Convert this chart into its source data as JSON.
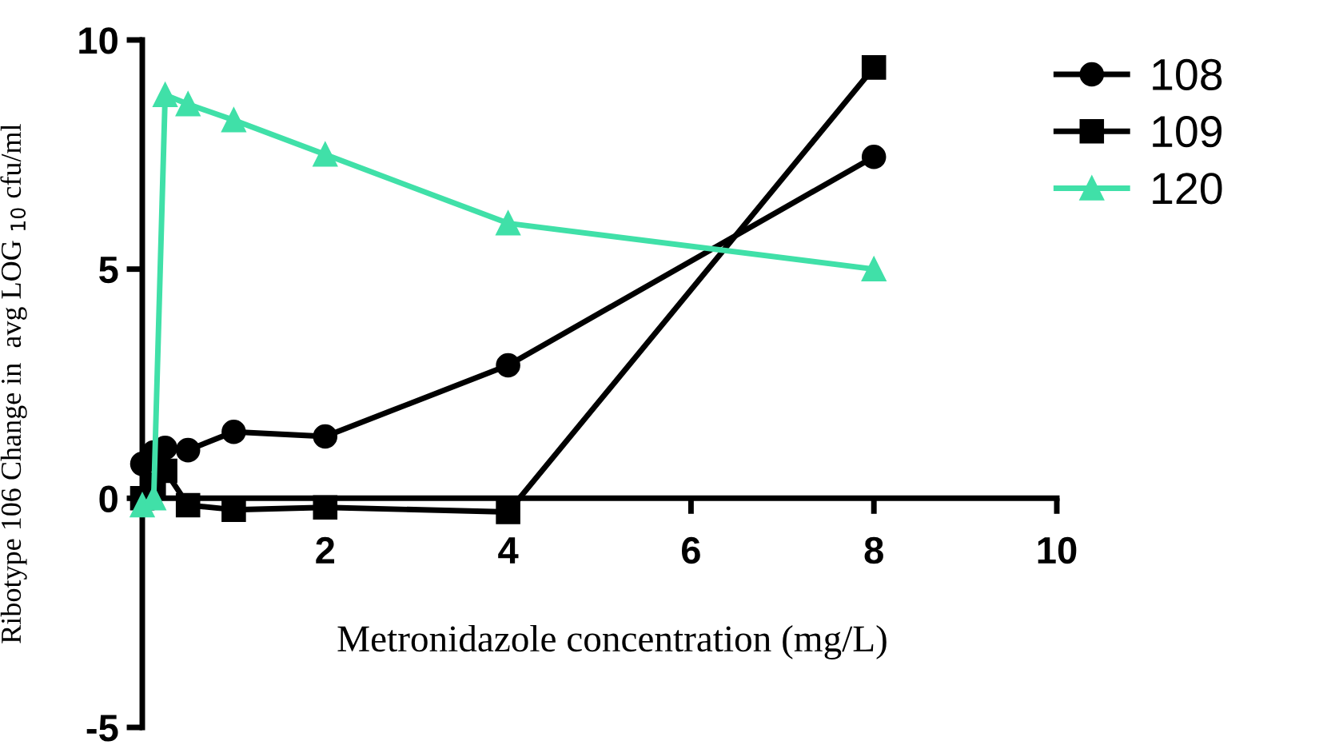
{
  "chart_data": {
    "type": "line",
    "xlabel": "Metronidazole concentration (mg/L)",
    "ylabel": "Ribotype 106 Change in  avg LOG $_{10}$ cfu/ml",
    "x": [
      0,
      0.125,
      0.25,
      0.5,
      1,
      2,
      4,
      8
    ],
    "series": [
      {
        "name": "108",
        "color": "#000000",
        "marker": "circle",
        "values": [
          0.75,
          1.0,
          1.1,
          1.05,
          1.45,
          1.35,
          2.9,
          7.45
        ]
      },
      {
        "name": "109",
        "color": "#000000",
        "marker": "square",
        "values": [
          0.0,
          0.3,
          0.6,
          -0.15,
          -0.25,
          -0.2,
          -0.3,
          9.4
        ]
      },
      {
        "name": "120",
        "color": "#40e0a8",
        "marker": "triangle",
        "values": [
          -0.15,
          0.0,
          8.8,
          8.6,
          8.25,
          7.5,
          6.0,
          5.0
        ]
      }
    ],
    "xlim": [
      0,
      10
    ],
    "xticks": [
      2,
      4,
      6,
      8,
      10
    ],
    "ylim": [
      -5,
      10
    ],
    "yticks": [
      -5,
      0,
      5,
      10
    ],
    "grid": false,
    "legend": "right",
    "line_style": "solid"
  }
}
